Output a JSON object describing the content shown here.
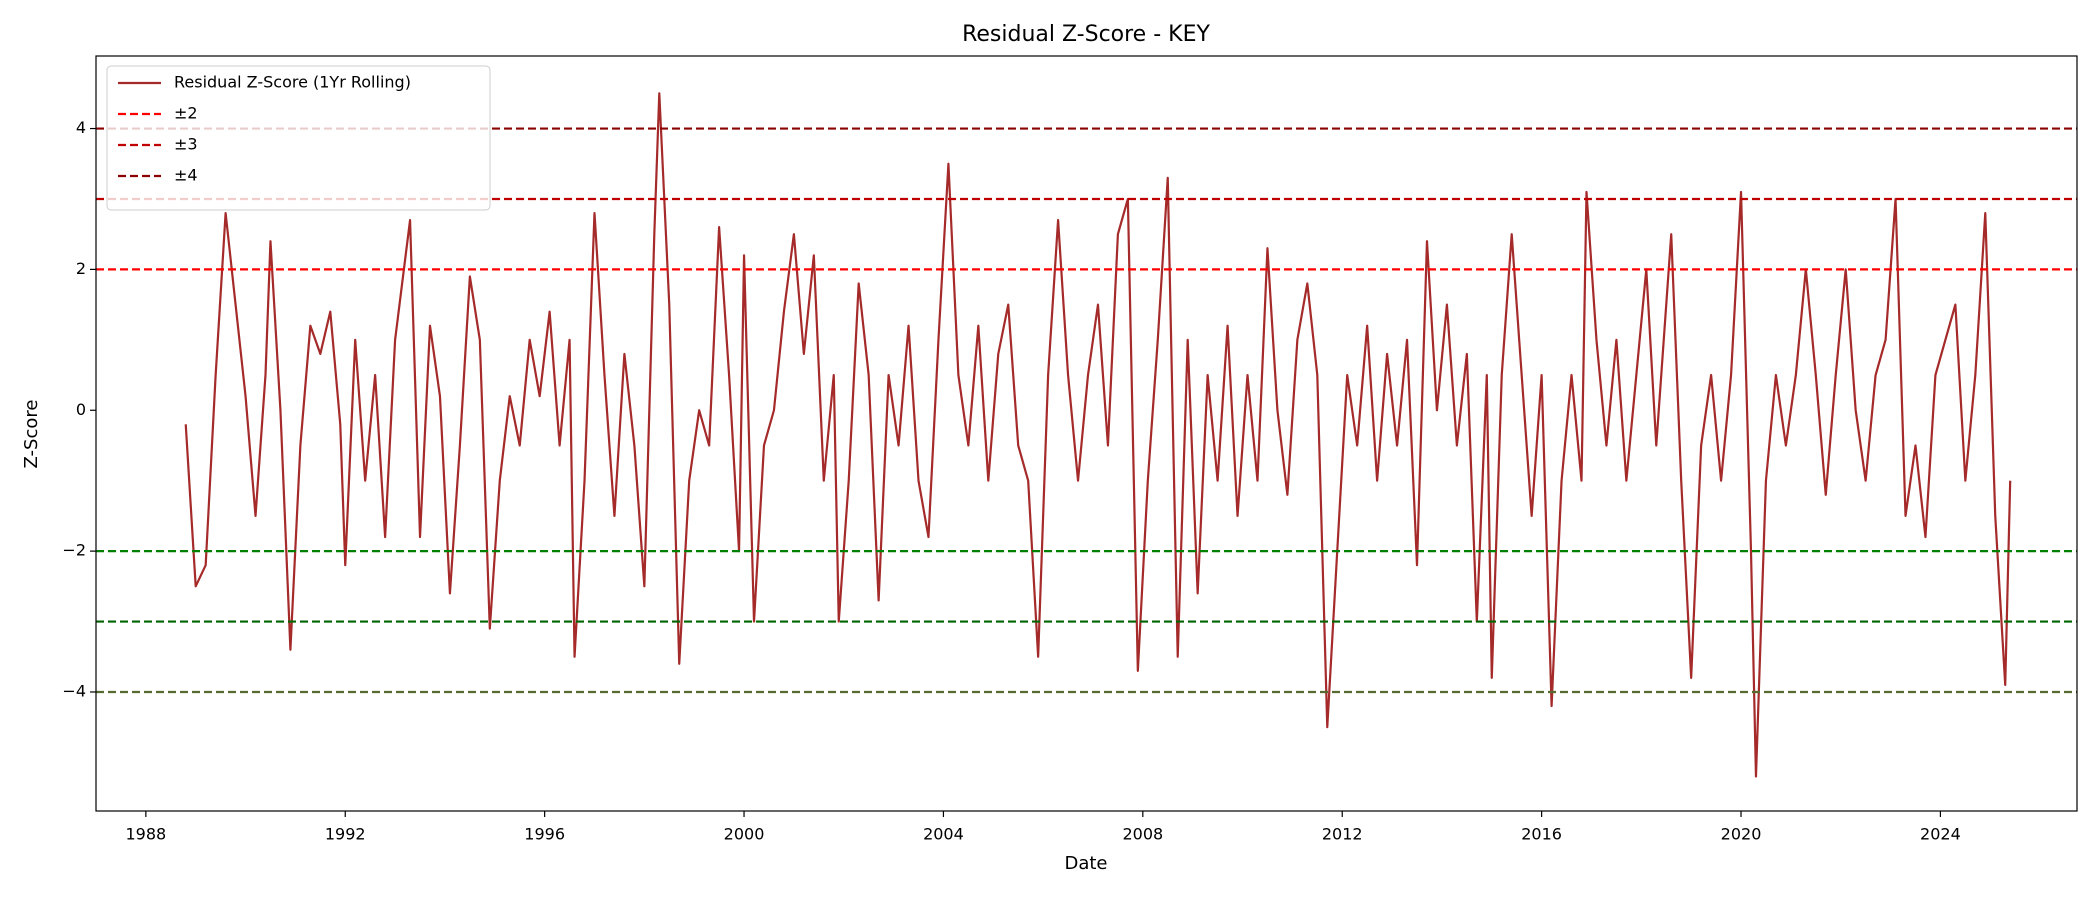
{
  "chart_data": {
    "type": "line",
    "title": "Residual Z-Score - KEY",
    "xlabel": "Date",
    "ylabel": "Z-Score",
    "xlim": [
      1987.0,
      2026.74
    ],
    "ylim": [
      -5.69,
      5.03
    ],
    "xticks": [
      1988,
      1992,
      1996,
      2000,
      2004,
      2008,
      2012,
      2016,
      2020,
      2024
    ],
    "yticks": [
      {
        "value": -4,
        "label": "−4"
      },
      {
        "value": -2,
        "label": "−2"
      },
      0,
      2,
      4
    ],
    "legend": "upper left",
    "x": [
      1988.8,
      1989.0,
      1989.2,
      1989.4,
      1989.6,
      1989.8,
      1990.0,
      1990.2,
      1990.4,
      1990.5,
      1990.7,
      1990.9,
      1991.1,
      1991.3,
      1991.5,
      1991.7,
      1991.9,
      1992.0,
      1992.2,
      1992.4,
      1992.6,
      1992.8,
      1993.0,
      1993.3,
      1993.5,
      1993.7,
      1993.9,
      1994.1,
      1994.3,
      1994.5,
      1994.7,
      1994.9,
      1995.1,
      1995.3,
      1995.5,
      1995.7,
      1995.9,
      1996.1,
      1996.3,
      1996.5,
      1996.6,
      1996.8,
      1997.0,
      1997.2,
      1997.4,
      1997.6,
      1997.8,
      1998.0,
      1998.2,
      1998.3,
      1998.5,
      1998.7,
      1998.9,
      1999.1,
      1999.3,
      1999.5,
      1999.7,
      1999.9,
      2000.0,
      2000.2,
      2000.4,
      2000.6,
      2000.8,
      2001.0,
      2001.2,
      2001.4,
      2001.6,
      2001.8,
      2001.9,
      2002.1,
      2002.3,
      2002.5,
      2002.7,
      2002.9,
      2003.1,
      2003.3,
      2003.5,
      2003.7,
      2003.9,
      2004.1,
      2004.3,
      2004.5,
      2004.7,
      2004.9,
      2005.1,
      2005.3,
      2005.5,
      2005.7,
      2005.9,
      2006.1,
      2006.3,
      2006.5,
      2006.7,
      2006.9,
      2007.1,
      2007.3,
      2007.5,
      2007.7,
      2007.9,
      2008.1,
      2008.3,
      2008.5,
      2008.7,
      2008.9,
      2009.1,
      2009.3,
      2009.5,
      2009.7,
      2009.9,
      2010.1,
      2010.3,
      2010.5,
      2010.7,
      2010.9,
      2011.1,
      2011.3,
      2011.5,
      2011.7,
      2011.9,
      2012.1,
      2012.3,
      2012.5,
      2012.7,
      2012.9,
      2013.1,
      2013.3,
      2013.5,
      2013.7,
      2013.9,
      2014.1,
      2014.3,
      2014.5,
      2014.7,
      2014.9,
      2015.0,
      2015.2,
      2015.4,
      2015.6,
      2015.8,
      2016.0,
      2016.2,
      2016.4,
      2016.6,
      2016.8,
      2016.9,
      2017.1,
      2017.3,
      2017.5,
      2017.7,
      2017.9,
      2018.1,
      2018.3,
      2018.6,
      2018.8,
      2019.0,
      2019.2,
      2019.4,
      2019.6,
      2019.8,
      2020.0,
      2020.2,
      2020.3,
      2020.5,
      2020.7,
      2020.9,
      2021.1,
      2021.3,
      2021.5,
      2021.7,
      2021.9,
      2022.1,
      2022.3,
      2022.5,
      2022.7,
      2022.9,
      2023.1,
      2023.3,
      2023.5,
      2023.7,
      2023.9,
      2024.1,
      2024.3,
      2024.5,
      2024.7,
      2024.9,
      2025.1,
      2025.3,
      2025.4
    ],
    "series": [
      {
        "name": "Residual Z-Score (1Yr Rolling)",
        "color": "#a52a2a",
        "values": [
          -0.2,
          -2.5,
          -2.2,
          0.5,
          2.8,
          1.5,
          0.2,
          -1.5,
          0.5,
          2.4,
          0,
          -3.4,
          -0.5,
          1.2,
          0.8,
          1.4,
          -0.2,
          -2.2,
          1.0,
          -1.0,
          0.5,
          -1.8,
          1.0,
          2.7,
          -1.8,
          1.2,
          0.2,
          -2.6,
          -0.5,
          1.9,
          1.0,
          -3.1,
          -1.0,
          0.2,
          -0.5,
          1.0,
          0.2,
          1.4,
          -0.5,
          1.0,
          -3.5,
          -1.0,
          2.8,
          0.5,
          -1.5,
          0.8,
          -0.5,
          -2.5,
          2.5,
          4.5,
          1.5,
          -3.6,
          -1.0,
          0,
          -0.5,
          2.6,
          0.5,
          -2.0,
          2.2,
          -3.0,
          -0.5,
          0,
          1.4,
          2.5,
          0.8,
          2.2,
          -1.0,
          0.5,
          -3.0,
          -1.0,
          1.8,
          0.5,
          -2.7,
          0.5,
          -0.5,
          1.2,
          -1.0,
          -1.8,
          1.0,
          3.5,
          0.5,
          -0.5,
          1.2,
          -1.0,
          0.8,
          1.5,
          -0.5,
          -1.0,
          -3.5,
          0.5,
          2.7,
          0.5,
          -1.0,
          0.5,
          1.5,
          -0.5,
          2.5,
          3.0,
          -3.7,
          -1.0,
          1.0,
          3.3,
          -3.5,
          1.0,
          -2.6,
          0.5,
          -1.0,
          1.2,
          -1.5,
          0.5,
          -1.0,
          2.3,
          0,
          -1.2,
          1.0,
          1.8,
          0.5,
          -4.5,
          -2.0,
          0.5,
          -0.5,
          1.2,
          -1.0,
          0.8,
          -0.5,
          1.0,
          -2.2,
          2.4,
          0,
          1.5,
          -0.5,
          0.8,
          -3.0,
          0.5,
          -3.8,
          0.5,
          2.5,
          0.5,
          -1.5,
          0.5,
          -4.2,
          -1.0,
          0.5,
          -1.0,
          3.1,
          1.0,
          -0.5,
          1.0,
          -1.0,
          0.5,
          2.0,
          -0.5,
          2.5,
          -1.0,
          -3.8,
          -0.5,
          0.5,
          -1.0,
          0.5,
          3.1,
          -2.0,
          -5.2,
          -1.0,
          0.5,
          -0.5,
          0.5,
          2.0,
          0.5,
          -1.2,
          0.5,
          2.0,
          0,
          -1.0,
          0.5,
          1.0,
          3.0,
          -1.5,
          -0.5,
          -1.8,
          0.5,
          1.0,
          1.5,
          -1.0,
          0.5,
          2.8,
          -1.5,
          -3.9,
          -1.0
        ]
      }
    ],
    "hlines": [
      {
        "name": "±2",
        "values": [
          2,
          -2
        ],
        "colors": [
          "#ff0000",
          "#008000"
        ]
      },
      {
        "name": "±3",
        "values": [
          3,
          -3
        ],
        "colors": [
          "#c00000",
          "#006400"
        ]
      },
      {
        "name": "±4",
        "values": [
          4,
          -4
        ],
        "colors": [
          "#8b0000",
          "#556b2f"
        ]
      }
    ]
  }
}
